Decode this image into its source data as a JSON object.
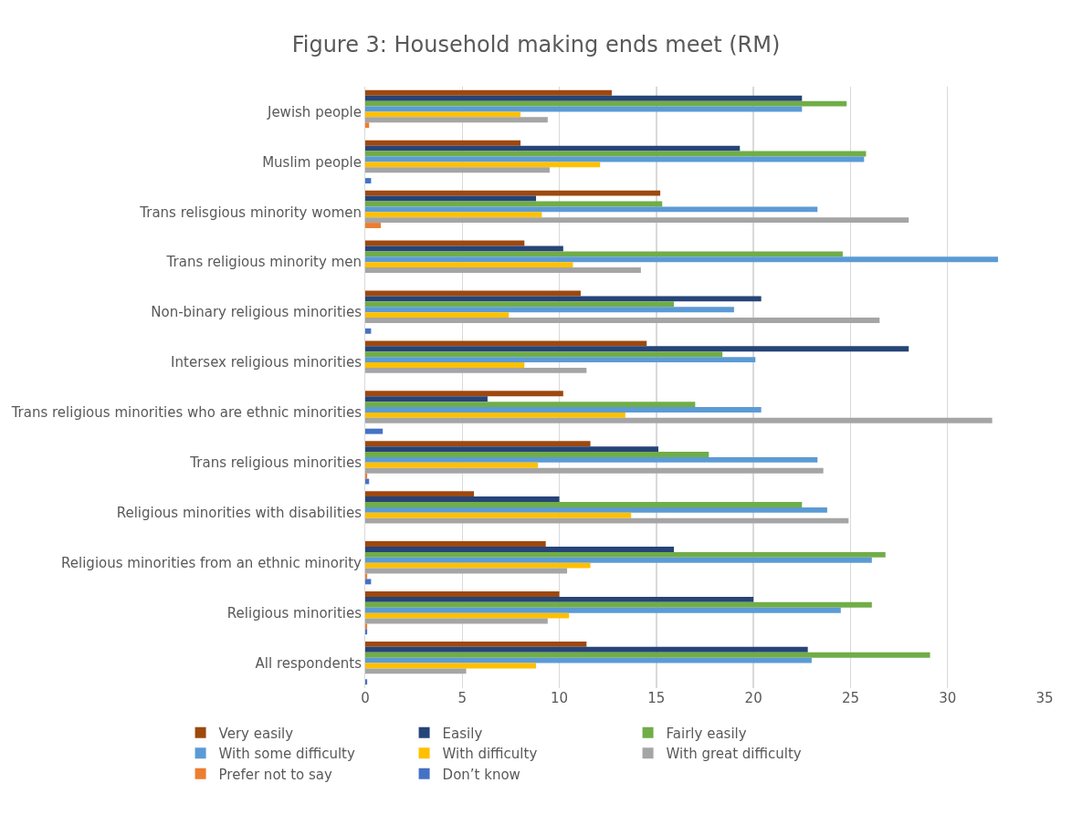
{
  "chart_data": {
    "type": "bar",
    "orientation": "horizontal",
    "title": "Figure 3: Household making ends meet (RM)",
    "categories": [
      "Jewish people",
      "Muslim people",
      "Trans relisgious minority women",
      "Trans religious minority men",
      "Non-binary religious minorities",
      "Intersex religious minorities",
      "Trans religious minorities who are ethnic minorities",
      "Trans religious minorities",
      "Religious minorities with disabilities",
      "Religious minorities from an ethnic minority",
      "Religious minorities",
      "All respondents"
    ],
    "series": [
      {
        "name": "Very easily",
        "color": "#9e480e",
        "values": [
          12.7,
          8.0,
          15.2,
          8.2,
          11.1,
          14.5,
          10.2,
          11.6,
          5.6,
          9.3,
          10.0,
          11.4
        ]
      },
      {
        "name": "Easily",
        "color": "#264478",
        "values": [
          22.5,
          19.3,
          8.8,
          10.2,
          20.4,
          28.0,
          6.3,
          15.1,
          10.0,
          15.9,
          20.0,
          22.8
        ]
      },
      {
        "name": "Fairly easily",
        "color": "#70ad47",
        "values": [
          24.8,
          25.8,
          15.3,
          24.6,
          15.9,
          18.4,
          17.0,
          17.7,
          22.5,
          26.8,
          26.1,
          29.1
        ]
      },
      {
        "name": "With some difficulty",
        "color": "#5b9bd5",
        "values": [
          22.5,
          25.7,
          23.3,
          32.6,
          19.0,
          20.1,
          20.4,
          23.3,
          23.8,
          26.1,
          24.5,
          23.0
        ]
      },
      {
        "name": "With difficulty",
        "color": "#ffc000",
        "values": [
          8.0,
          12.1,
          9.1,
          10.7,
          7.4,
          8.2,
          13.4,
          8.9,
          13.7,
          11.6,
          10.5,
          8.8
        ]
      },
      {
        "name": "With great difficulty",
        "color": "#a5a5a5",
        "values": [
          9.4,
          9.5,
          28.0,
          14.2,
          26.5,
          11.4,
          32.3,
          23.6,
          24.9,
          10.4,
          9.4,
          5.2
        ]
      },
      {
        "name": "Prefer not to say",
        "color": "#ed7d31",
        "values": [
          0.2,
          0,
          0.8,
          0,
          0,
          0,
          0,
          0.1,
          0,
          0.1,
          0.1,
          0
        ]
      },
      {
        "name": "Don’t know",
        "color": "#4472c4",
        "values": [
          0,
          0.3,
          0,
          0,
          0.3,
          0,
          0.9,
          0.2,
          0,
          0.3,
          0.1,
          0.1
        ]
      }
    ],
    "xlim": [
      0,
      35
    ],
    "xticks": [
      0,
      5,
      10,
      15,
      20,
      25,
      30,
      35
    ],
    "grid": "x",
    "legend": "bottom"
  }
}
